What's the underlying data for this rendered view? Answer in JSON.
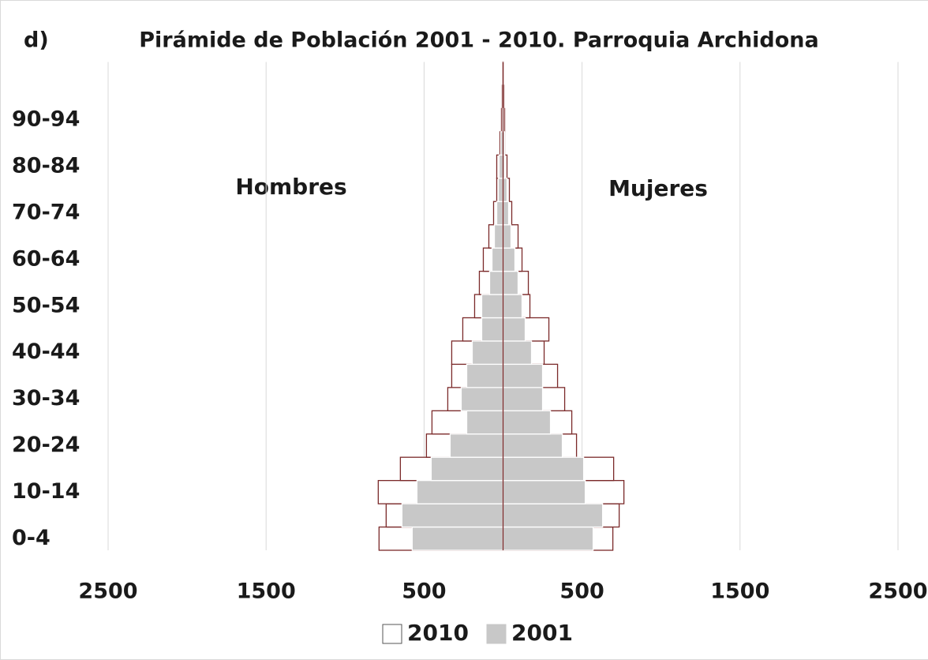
{
  "chart_data": {
    "type": "pyramid",
    "panel_label": "d)",
    "title": "Pirámide de Población 2001 - 2010. Parroquia Archidona",
    "annotations": [
      "Hombres",
      "Mujeres"
    ],
    "categories": [
      "0-4",
      null,
      "10-14",
      null,
      "20-24",
      null,
      "30-34",
      null,
      "40-44",
      null,
      "50-54",
      null,
      "60-64",
      null,
      "70-74",
      null,
      "80-84",
      null,
      "90-94",
      null,
      null
    ],
    "series": [
      {
        "name": "2010",
        "color": "#ffffff",
        "edgecolor": "#7b2a2a",
        "values_hombres": [
          -785,
          -740,
          -790,
          -650,
          -485,
          -450,
          -350,
          -325,
          -325,
          -255,
          -180,
          -150,
          -125,
          -90,
          -60,
          -40,
          -40,
          -20,
          -10,
          -5,
          -2
        ],
        "values_mujeres": [
          695,
          735,
          765,
          700,
          465,
          435,
          390,
          345,
          260,
          290,
          170,
          160,
          120,
          95,
          55,
          40,
          25,
          10,
          10,
          5,
          2
        ]
      },
      {
        "name": "2001",
        "color": "#c8c8c8",
        "edgecolor": "#ffffff",
        "values_hombres": [
          -575,
          -640,
          -545,
          -455,
          -335,
          -230,
          -265,
          -230,
          -195,
          -135,
          -135,
          -85,
          -70,
          -55,
          -40,
          -30,
          -25,
          -15,
          -5,
          -2,
          -1
        ],
        "values_mujeres": [
          570,
          630,
          520,
          510,
          375,
          300,
          250,
          250,
          180,
          140,
          120,
          95,
          75,
          50,
          35,
          25,
          10,
          10,
          5,
          2,
          1
        ]
      }
    ],
    "xlim": [
      -2500,
      2500
    ],
    "xticks": [
      {
        "value": -2500,
        "label": "2500"
      },
      {
        "value": -1500,
        "label": "1500"
      },
      {
        "value": -500,
        "label": "500"
      },
      500,
      1500,
      2500
    ],
    "grid": true
  }
}
